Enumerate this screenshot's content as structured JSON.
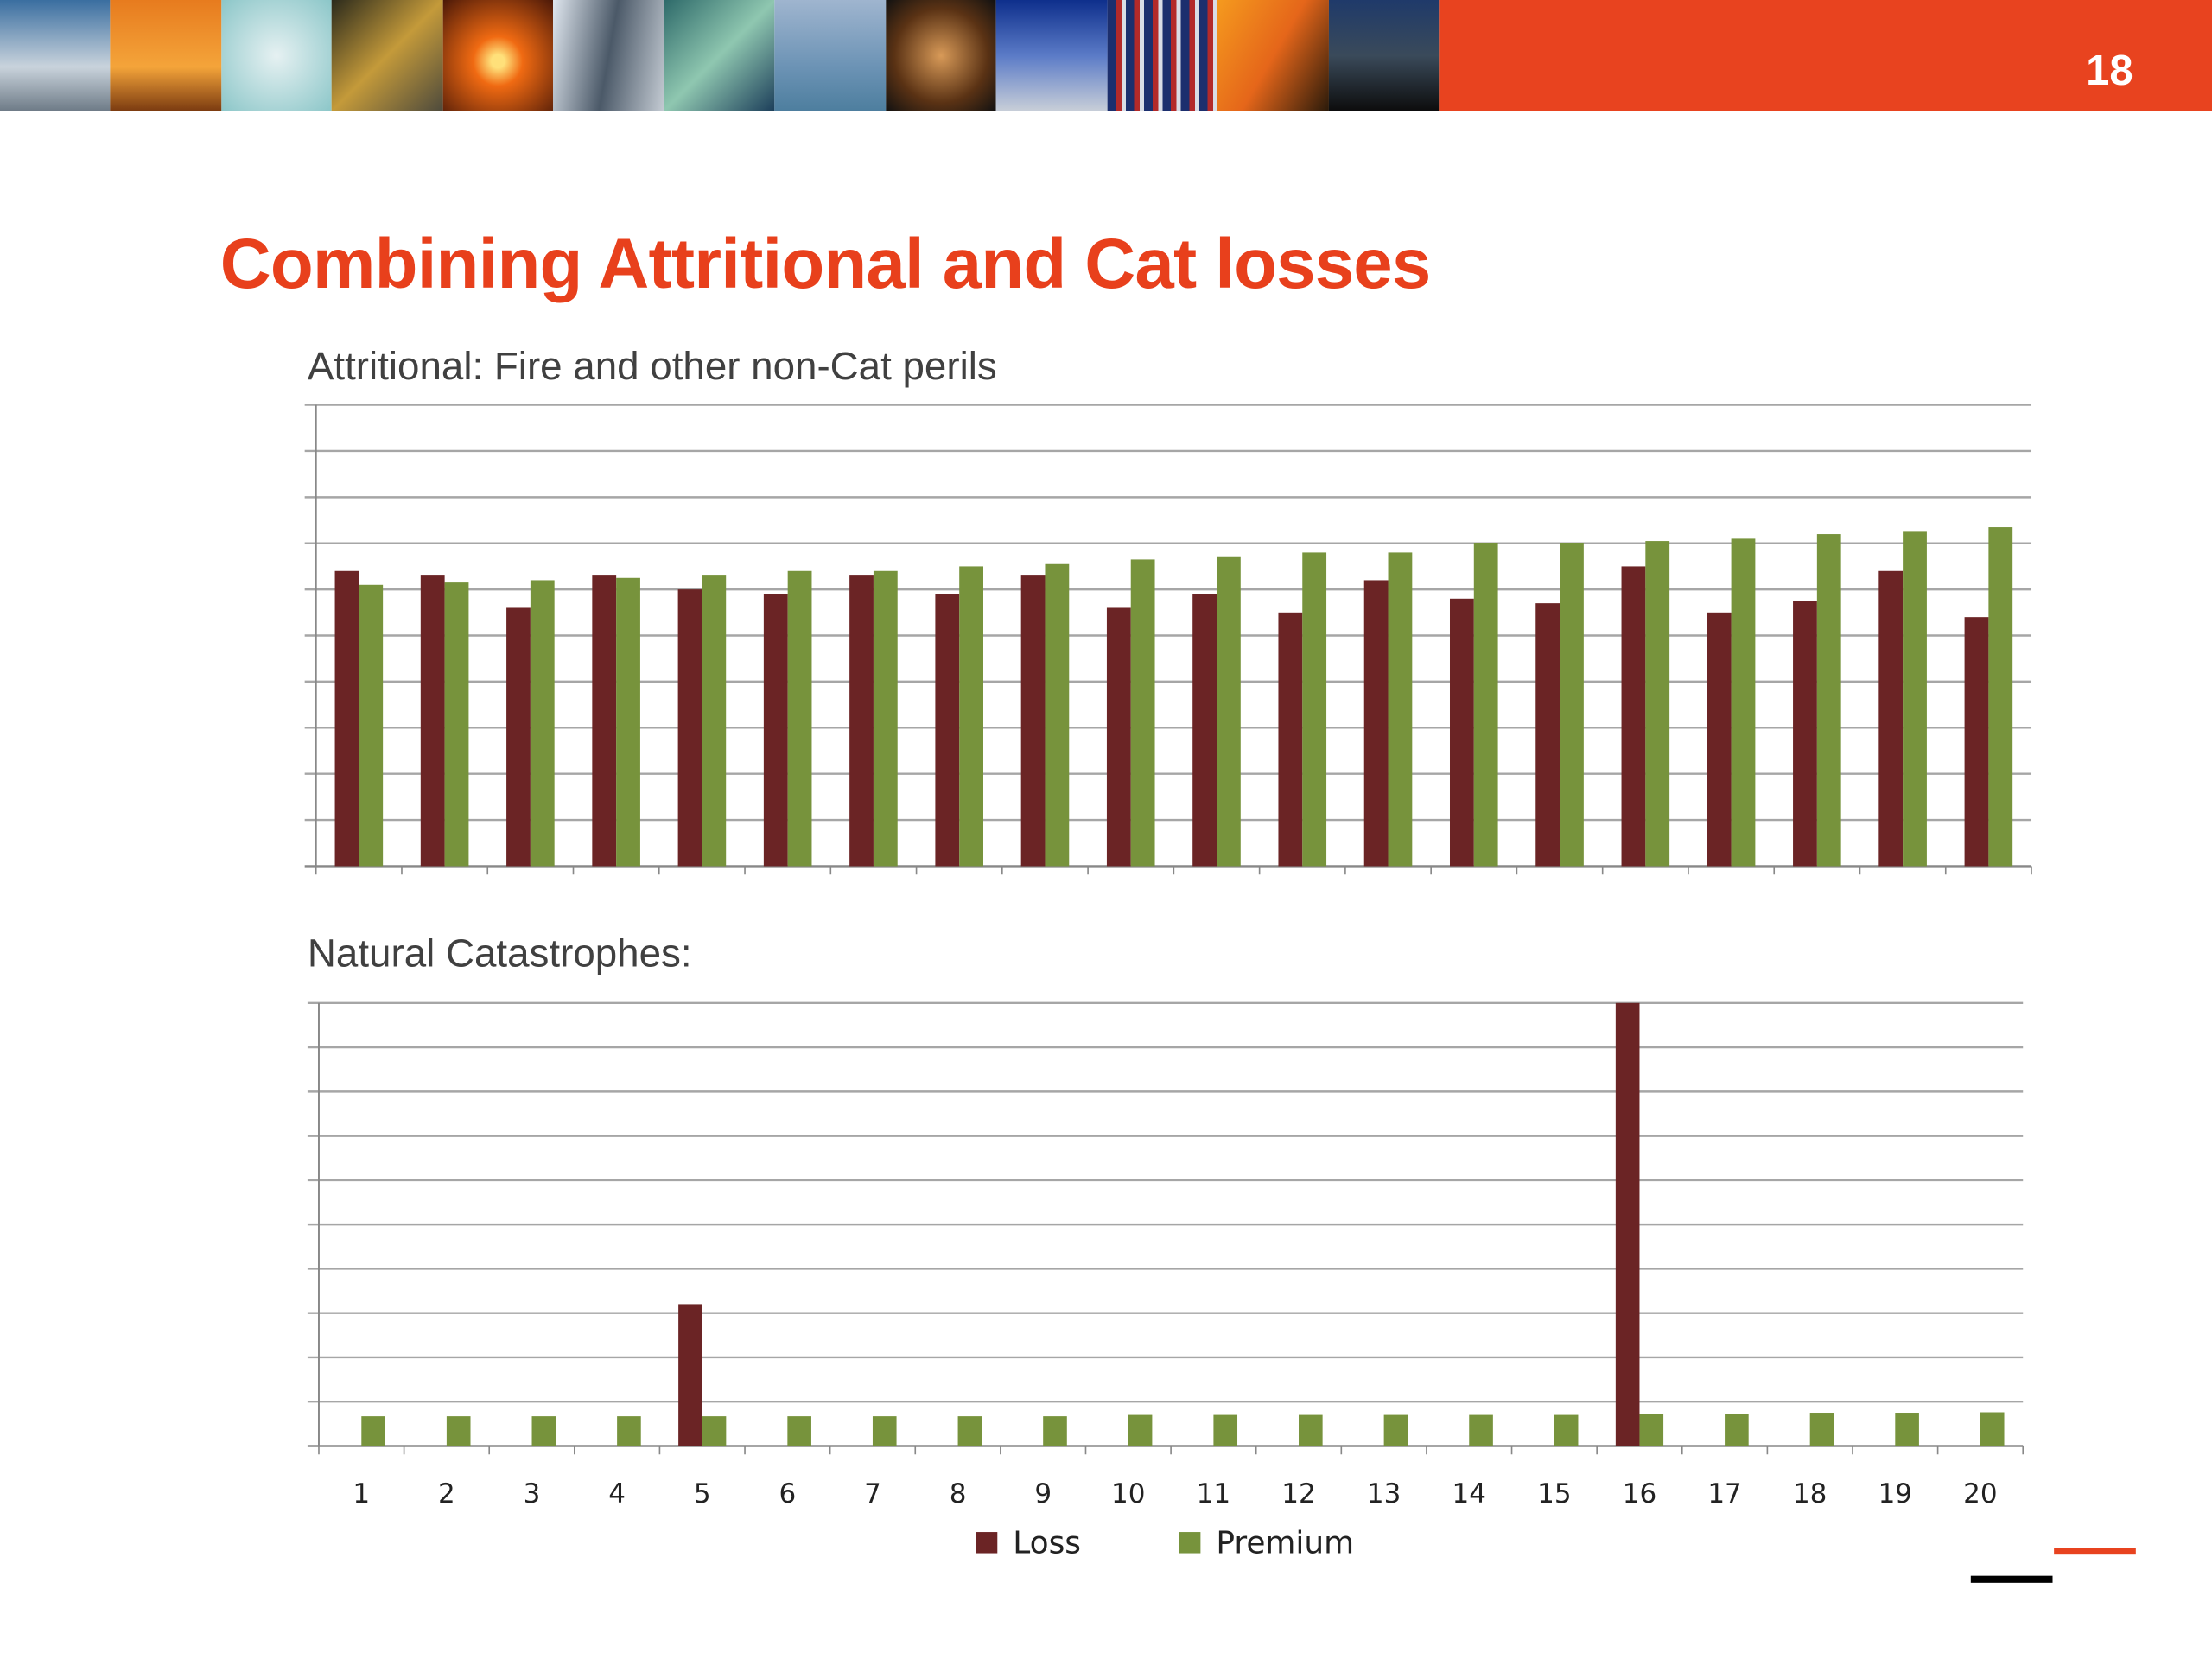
{
  "header": {
    "page_number": "18"
  },
  "title": "Combining Attritional and Cat losses",
  "colors": {
    "accent": "#e8401c",
    "loss": "#6b2425",
    "premium": "#77933c"
  },
  "chart_data": [
    {
      "type": "bar",
      "title": "Attritional: Fire and other non-Cat perils",
      "categories": [
        "1",
        "2",
        "3",
        "4",
        "5",
        "6",
        "7",
        "8",
        "9",
        "10",
        "11",
        "12",
        "13",
        "14",
        "15",
        "16",
        "17",
        "18",
        "19",
        "20"
      ],
      "series": [
        {
          "name": "Loss",
          "values": [
            6.4,
            6.3,
            5.6,
            6.3,
            6.0,
            5.9,
            6.3,
            5.9,
            6.3,
            5.6,
            5.9,
            5.5,
            6.2,
            5.8,
            5.7,
            6.5,
            5.5,
            5.75,
            6.4,
            5.4
          ]
        },
        {
          "name": "Premium",
          "values": [
            6.1,
            6.15,
            6.2,
            6.25,
            6.3,
            6.4,
            6.4,
            6.5,
            6.55,
            6.65,
            6.7,
            6.8,
            6.8,
            7.0,
            7.0,
            7.05,
            7.1,
            7.2,
            7.25,
            7.35
          ]
        }
      ],
      "ylim": [
        0,
        10
      ],
      "grid": true,
      "tick_labels_shown": false
    },
    {
      "type": "bar",
      "title": "Natural Catastrophes:",
      "categories": [
        "1",
        "2",
        "3",
        "4",
        "5",
        "6",
        "7",
        "8",
        "9",
        "10",
        "11",
        "12",
        "13",
        "14",
        "15",
        "16",
        "17",
        "18",
        "19",
        "20"
      ],
      "series": [
        {
          "name": "Loss",
          "values": [
            0,
            0,
            0,
            0,
            3.2,
            0,
            0,
            0,
            0,
            0,
            0,
            0,
            0,
            0,
            0,
            10,
            0,
            0,
            0,
            0
          ]
        },
        {
          "name": "Premium",
          "values": [
            0.67,
            0.67,
            0.67,
            0.67,
            0.67,
            0.67,
            0.67,
            0.67,
            0.67,
            0.7,
            0.7,
            0.7,
            0.7,
            0.7,
            0.7,
            0.72,
            0.72,
            0.75,
            0.75,
            0.76
          ]
        }
      ],
      "ylim": [
        0,
        10
      ],
      "grid": true,
      "legend": {
        "position": "bottom",
        "entries": [
          "Loss",
          "Premium"
        ]
      }
    }
  ]
}
